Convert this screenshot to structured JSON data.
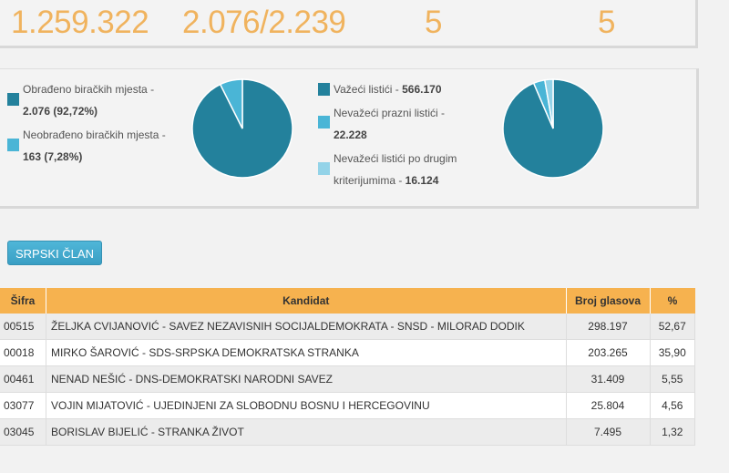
{
  "summary": {
    "values": [
      "1.259.322",
      "2.076/2.239",
      "5",
      "5"
    ]
  },
  "colors": {
    "accent": "#f0b35e",
    "dark": "#23819c",
    "mid": "#4ab5d6",
    "light": "#93d3e8",
    "header": "#f6b24f"
  },
  "chart_data": [
    {
      "type": "pie",
      "series": [
        {
          "name": "Obrađeno biračkih mjesta",
          "label_value": "2.076 (92,72%)",
          "value": 2076,
          "color": "#23819c"
        },
        {
          "name": "Neobrađeno biračkih mjesta",
          "label_value": "163 (7,28%)",
          "value": 163,
          "color": "#4ab5d6"
        }
      ]
    },
    {
      "type": "pie",
      "series": [
        {
          "name": "Važeći listići",
          "label_value": "566.170",
          "value": 566170,
          "color": "#23819c"
        },
        {
          "name": "Nevažeći prazni listići",
          "label_value": "22.228",
          "value": 22228,
          "color": "#4ab5d6"
        },
        {
          "name": "Nevažeći listići po drugim kriterijumima",
          "label_value": "16.124",
          "value": 16124,
          "color": "#93d3e8"
        }
      ]
    }
  ],
  "legend1": [
    {
      "l1": "Obrađeno biračkih mjesta -",
      "l2": "2.076 (92,72%)"
    },
    {
      "l1": "Neobrađeno biračkih mjesta -",
      "l2": "163 (7,28%)"
    }
  ],
  "legend2": [
    {
      "l1": "Važeći listići - ",
      "b": "566.170"
    },
    {
      "l1": "Nevažeći prazni listići -",
      "b": "22.228"
    },
    {
      "l1": "Nevažeći listići po drugim",
      "l2": "kriterijumima - ",
      "b": "16.124"
    }
  ],
  "button": "SRPSKI ČLAN",
  "table": {
    "headers": [
      "Šifra",
      "Kandidat",
      "Broj glasova",
      "%"
    ],
    "rows": [
      [
        "00515",
        "ŽELJKA CVIJANOVIĆ - SAVEZ NEZAVISNIH SOCIJALDEMOKRATA - SNSD - MILORAD DODIK",
        "298.197",
        "52,67"
      ],
      [
        "00018",
        "MIRKO ŠAROVIĆ - SDS-SRPSKA DEMOKRATSKA STRANKA",
        "203.265",
        "35,90"
      ],
      [
        "00461",
        "NENAD NEŠIĆ - DNS-DEMOKRATSKI NARODNI SAVEZ",
        "31.409",
        "5,55"
      ],
      [
        "03077",
        "VOJIN MIJATOVIĆ - UJEDINJENI ZA SLOBODNU BOSNU I HERCEGOVINU",
        "25.804",
        "4,56"
      ],
      [
        "03045",
        "BORISLAV BIJELIĆ - STRANKA ŽIVOT",
        "7.495",
        "1,32"
      ]
    ]
  }
}
